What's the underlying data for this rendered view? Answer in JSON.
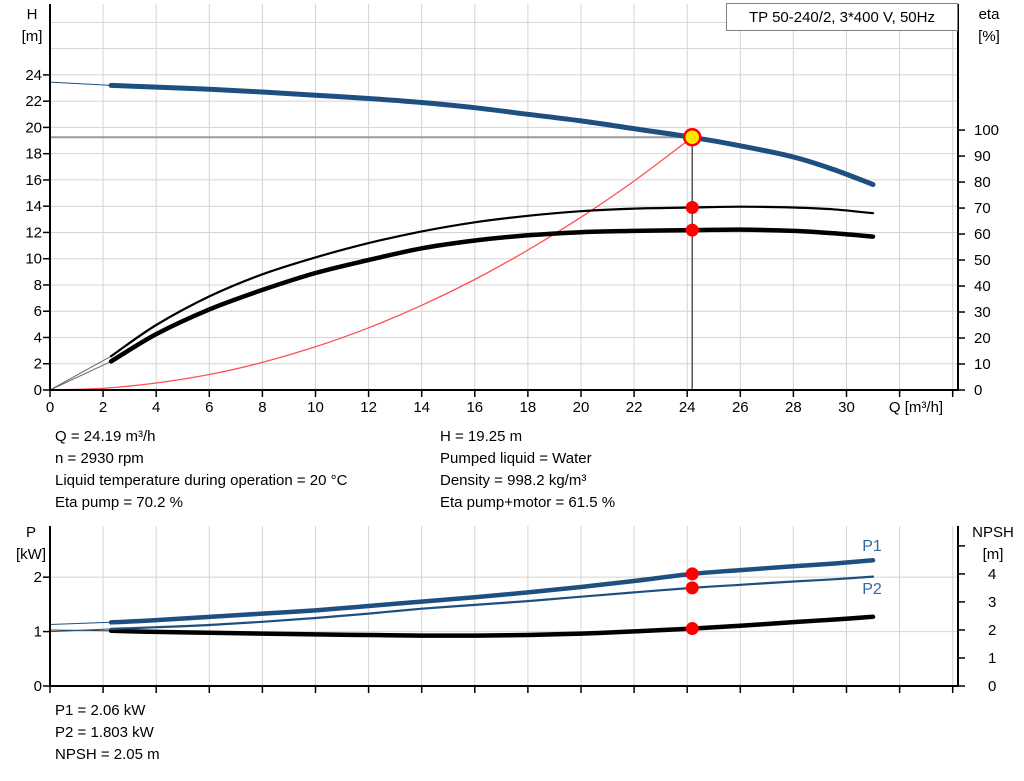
{
  "colors": {
    "accent_blue": "#1d5080",
    "label_blue": "#3465a4",
    "red": "#ff0000",
    "system_red": "#ff5050",
    "duty_yellow": "#ffe800",
    "grid": "#d4d4d4",
    "axis": "#000000",
    "crosshair_h": "#9a9a9a",
    "crosshair_v": "#555555",
    "extrapolation_gray": "#666666"
  },
  "info": {
    "top_left": [
      "Q = 24.19 m³/h",
      "n = 2930 rpm",
      "Liquid temperature during operation = 20 °C",
      "Eta pump = 70.2 %"
    ],
    "top_right": [
      "H = 19.25 m",
      "Pumped liquid = Water",
      "Density = 998.2 kg/m³",
      "Eta pump+motor = 61.5 %"
    ],
    "bottom": [
      "P1 = 2.06 kW",
      "P2 = 1.803 kW",
      "NPSH = 2.05 m"
    ]
  },
  "chart_data": [
    {
      "type": "line",
      "title": "TP 50-240/2, 3*400 V, 50Hz",
      "x_axis": {
        "unit": "Q [m³/h]",
        "min": 0,
        "max": 34.2,
        "labeled_ticks": [
          0,
          2,
          4,
          6,
          8,
          10,
          12,
          14,
          16,
          18,
          20,
          22,
          24,
          26,
          28,
          30
        ],
        "unlabeled_ticks": [
          32,
          34
        ],
        "grid_ticks": [
          2,
          4,
          6,
          8,
          10,
          12,
          14,
          16,
          18,
          20,
          22,
          24,
          26,
          28,
          30,
          32,
          34
        ]
      },
      "y_left": {
        "unit_line1": "H",
        "unit_line2": "[m]",
        "min": 0,
        "max": 29.4,
        "labeled_ticks": [
          0,
          2,
          4,
          6,
          8,
          10,
          12,
          14,
          16,
          18,
          20,
          22,
          24
        ],
        "unlabeled_ticks": [],
        "grid_ticks": [
          2,
          4,
          6,
          8,
          10,
          12,
          14,
          16,
          18,
          20,
          22,
          24,
          26,
          28
        ]
      },
      "y_right": {
        "unit_line1": "eta",
        "unit_line2": "[%]",
        "min": 0,
        "max": 148.5,
        "labeled_ticks": [
          0,
          10,
          20,
          30,
          40,
          50,
          60,
          70,
          80,
          90,
          100
        ],
        "unlabeled_ticks": []
      },
      "series": [
        {
          "name": "system-curve",
          "axis": "left",
          "color": "#ff5050",
          "width": 1.3,
          "x": [
            0,
            2,
            4,
            6,
            8,
            10,
            12,
            14,
            16,
            18,
            20,
            22,
            24.19
          ],
          "y": [
            0,
            0.13,
            0.53,
            1.18,
            2.1,
            3.29,
            4.74,
            6.45,
            8.42,
            10.66,
            13.16,
            15.92,
            19.25
          ]
        },
        {
          "name": "eta-pump-motor-curve",
          "axis": "right",
          "color": "#000000",
          "width": 4.5,
          "x": [
            2.3,
            4,
            6,
            8,
            10,
            12,
            14,
            16,
            18,
            20,
            22,
            24.19,
            26,
            28,
            29.5,
            31
          ],
          "y": [
            11,
            21.5,
            31,
            38.5,
            45,
            50,
            54.5,
            57.5,
            59.5,
            60.7,
            61.2,
            61.5,
            61.7,
            61.2,
            60.3,
            59
          ],
          "ext_x": [
            0,
            2.3
          ],
          "ext_y": [
            0,
            11
          ],
          "ext_color": "#666666"
        },
        {
          "name": "eta-pump-curve",
          "axis": "right",
          "color": "#000000",
          "width": 2.2,
          "x": [
            2.3,
            4,
            6,
            8,
            10,
            12,
            14,
            16,
            18,
            20,
            22,
            24.19,
            26,
            28,
            29.5,
            31
          ],
          "y": [
            13,
            25,
            36,
            44.5,
            51,
            56.5,
            61,
            64.5,
            67,
            68.8,
            69.8,
            70.2,
            70.5,
            70.2,
            69.5,
            68
          ],
          "ext_x": [
            0,
            2.3
          ],
          "ext_y": [
            0,
            13
          ],
          "ext_color": "#666666"
        },
        {
          "name": "head-curve",
          "axis": "left",
          "color": "#1d5080",
          "width": 5,
          "x": [
            2.3,
            4,
            6,
            8,
            10,
            12,
            14,
            16,
            18,
            20,
            22,
            24.19,
            26,
            28,
            29.5,
            31
          ],
          "y": [
            23.2,
            23.07,
            22.9,
            22.7,
            22.45,
            22.2,
            21.9,
            21.5,
            21.0,
            20.5,
            19.9,
            19.25,
            18.6,
            17.75,
            16.8,
            15.65
          ],
          "ext_x": [
            0,
            2.3
          ],
          "ext_y": [
            23.45,
            23.2
          ],
          "ext_color": "#1d5080"
        }
      ],
      "crosshair": {
        "q": 24.19,
        "h": 19.25
      },
      "markers": [
        {
          "name": "duty-point-marker",
          "q": 24.19,
          "value": 19.25,
          "axis": "left",
          "style": "duty"
        },
        {
          "name": "eta-pump-point",
          "q": 24.19,
          "value": 70.2,
          "axis": "right",
          "style": "dot"
        },
        {
          "name": "eta-pump-motor-point",
          "q": 24.19,
          "value": 61.5,
          "axis": "right",
          "style": "dot"
        }
      ]
    },
    {
      "type": "line",
      "title": "",
      "x_axis": {
        "unit": "",
        "min": 0,
        "max": 34.2,
        "labeled_ticks": [],
        "unlabeled_ticks": [
          0,
          2,
          4,
          6,
          8,
          10,
          12,
          14,
          16,
          18,
          20,
          22,
          24,
          26,
          28,
          30,
          32,
          34
        ],
        "grid_ticks": [
          2,
          4,
          6,
          8,
          10,
          12,
          14,
          16,
          18,
          20,
          22,
          24,
          26,
          28,
          30,
          32,
          34
        ]
      },
      "y_left": {
        "unit_line1": "P",
        "unit_line2": "[kW]",
        "min": 0,
        "max": 2.94,
        "labeled_ticks": [
          0,
          1,
          2
        ],
        "unlabeled_ticks": [],
        "grid_ticks": [
          1,
          2
        ]
      },
      "y_right": {
        "unit_line1": "NPSH",
        "unit_line2": "[m]",
        "min": 0,
        "max": 5.71,
        "labeled_ticks": [
          0,
          1,
          2,
          3,
          4
        ],
        "unlabeled_ticks": [
          5
        ]
      },
      "series": [
        {
          "name": "npsh-curve",
          "axis": "right",
          "color": "#000000",
          "width": 4.5,
          "x": [
            2.3,
            4,
            6,
            8,
            10,
            12,
            14,
            16,
            18,
            20,
            22,
            24.19,
            26,
            28,
            29.5,
            31
          ],
          "y": [
            1.97,
            1.93,
            1.9,
            1.87,
            1.84,
            1.82,
            1.8,
            1.8,
            1.82,
            1.87,
            1.95,
            2.05,
            2.15,
            2.28,
            2.37,
            2.47
          ],
          "ext_x": [
            0,
            2.3
          ],
          "ext_y": [
            2.0,
            1.97
          ],
          "ext_color": "#444444"
        },
        {
          "name": "p2-curve",
          "axis": "left",
          "color": "#1d5080",
          "width": 2.2,
          "label": "P2",
          "x": [
            2.3,
            4,
            6,
            8,
            10,
            12,
            14,
            16,
            18,
            20,
            22,
            24.19,
            26,
            28,
            29.5,
            31
          ],
          "y": [
            1.05,
            1.08,
            1.12,
            1.18,
            1.25,
            1.33,
            1.42,
            1.49,
            1.56,
            1.64,
            1.72,
            1.803,
            1.86,
            1.92,
            1.96,
            2.01
          ],
          "ext_x": [
            0,
            2.3
          ],
          "ext_y": [
            1.0,
            1.05
          ],
          "ext_color": "#1d5080"
        },
        {
          "name": "p1-curve",
          "axis": "left",
          "color": "#1d5080",
          "width": 4.5,
          "label": "P1",
          "x": [
            2.3,
            4,
            6,
            8,
            10,
            12,
            14,
            16,
            18,
            20,
            22,
            24.19,
            26,
            28,
            29.5,
            31
          ],
          "y": [
            1.17,
            1.21,
            1.27,
            1.33,
            1.39,
            1.47,
            1.55,
            1.63,
            1.72,
            1.82,
            1.93,
            2.06,
            2.13,
            2.2,
            2.25,
            2.31
          ],
          "ext_x": [
            0,
            2.3
          ],
          "ext_y": [
            1.13,
            1.17
          ],
          "ext_color": "#1d5080"
        }
      ],
      "markers": [
        {
          "name": "p1-point",
          "q": 24.19,
          "value": 2.06,
          "axis": "left",
          "style": "dot"
        },
        {
          "name": "p2-point",
          "q": 24.19,
          "value": 1.803,
          "axis": "left",
          "style": "dot"
        },
        {
          "name": "npsh-point",
          "q": 24.19,
          "value": 2.05,
          "axis": "right",
          "style": "dot"
        }
      ]
    }
  ]
}
